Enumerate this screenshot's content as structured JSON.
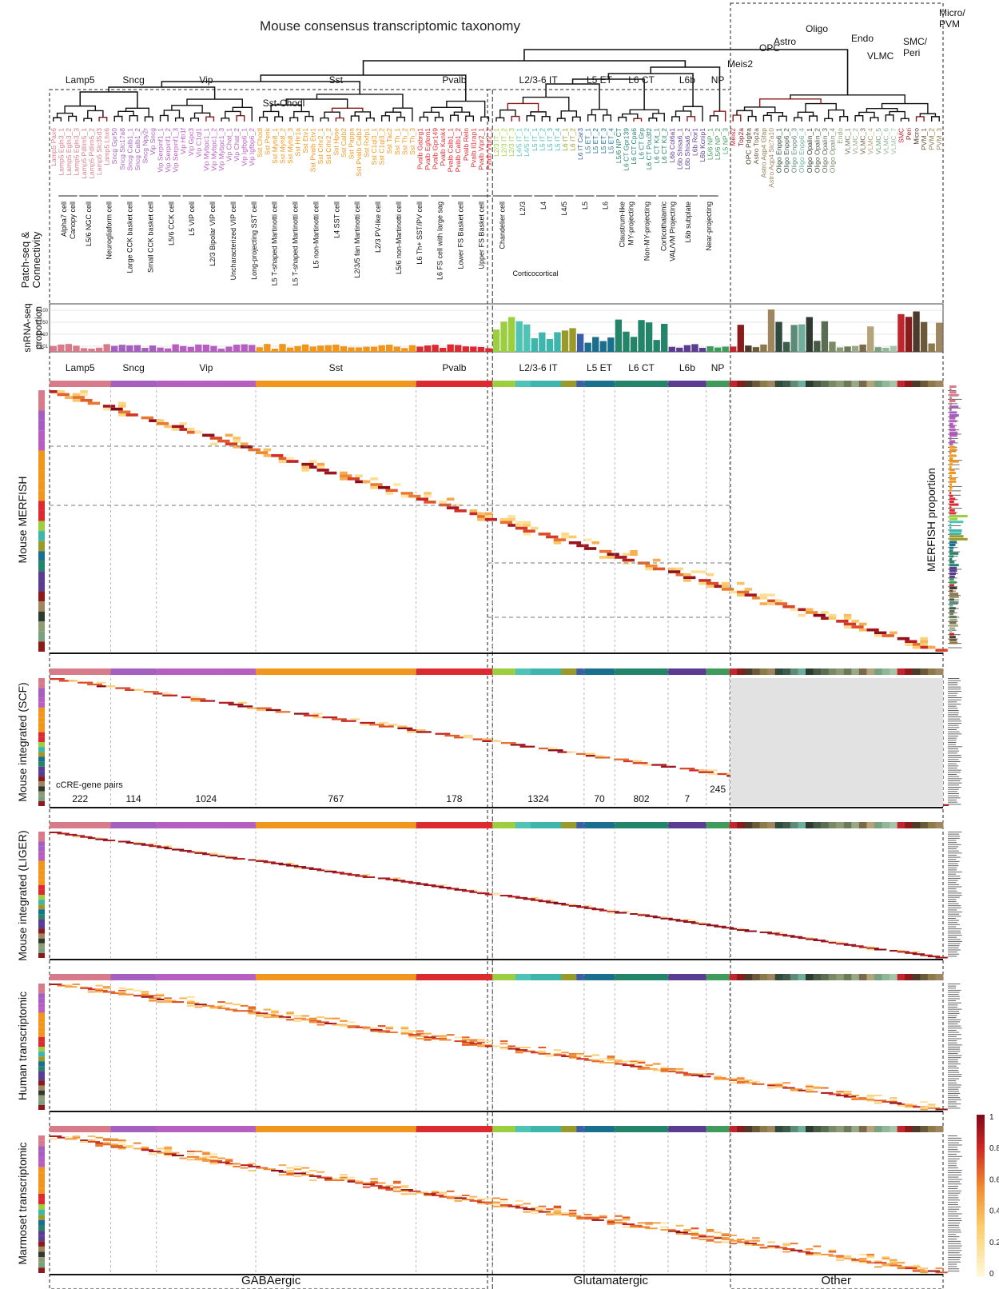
{
  "title": "Mouse consensus transcriptomic taxonomy",
  "classes": [
    {
      "name": "Lamp5",
      "color": "#d77b8a"
    },
    {
      "name": "Sncg",
      "color": "#a45fbf"
    },
    {
      "name": "Vip",
      "color": "#b65fc0"
    },
    {
      "name": "Sst",
      "color": "#f0961d"
    },
    {
      "name": "Pvalb",
      "color": "#dc2a31"
    },
    {
      "name": "L2/3-6 IT",
      "color": "#3fb6ad"
    },
    {
      "name": "L5 ET",
      "color": "#1a6f8e"
    },
    {
      "name": "L6 CT",
      "color": "#23846a"
    },
    {
      "name": "L6b",
      "color": "#5a3d91"
    },
    {
      "name": "NP",
      "color": "#3f9a5b"
    },
    {
      "name": "Other",
      "color": "#3c4a3e"
    }
  ],
  "top_labels": {
    "sst_chodl": "Sst-Chodl",
    "other_group": [
      "OPC",
      "Astro",
      "Oligo",
      "Endo",
      "VLMC",
      "SMC/\nPeri",
      "Micro/\nPVM",
      "Meis2"
    ]
  },
  "leaf_labels": [
    "Lamp5 Pax6",
    "Lamp5 Egln3_1",
    "Lamp5 Egln3_2",
    "Lamp5 Egln3_3",
    "Lamp5 Pdlim5_1",
    "Lamp5 Pdlim5_2",
    "Lamp5 Slc35d3",
    "Lamp5 Lhx6",
    "Sncg Gpr50",
    "Sncg Slc17a8",
    "Sncg Calb1_1",
    "Sncg Calb1_2",
    "Sncg Npy2r",
    "Vip Sncg",
    "Vip Serpinf1_1",
    "Vip Serpinf1_2",
    "Vip Serpinf1_3",
    "Vip Htr1f",
    "Vip Gpc3",
    "Vip C1ql1",
    "Vip Mybpc1_1",
    "Vip Mybpc1_2",
    "Vip Mybpc1_3",
    "Vip Chat_1",
    "Vip Chat_2",
    "Vip Igfbp6_1",
    "Vip Igfbp6_2",
    "Sst Chodl",
    "Sst Penk",
    "Sst Myh8_1",
    "Sst Myh8_2",
    "Sst Myh8_3",
    "Sst Htr1a",
    "Sst Etv1",
    "Sst Pvalb Etv1",
    "Sst Crhr2_1",
    "Sst Crhr2_2",
    "Sst Hpse",
    "Sst Calb2",
    "Sst Pappa",
    "Sst Pvalb Calb2",
    "Sst Rxfp1",
    "Sst C1ql3_1",
    "Sst C1ql3_2",
    "Sst Tac2",
    "Sst Th_1",
    "Sst Th_2",
    "Sst Th_3",
    "Pvalb Gabrg1",
    "Pvalb Egfem1",
    "Pvalb Gpr149",
    "Pvalb Kank4",
    "Pvalb Calb1_1",
    "Pvalb Calb1_2",
    "Pvalb Reln",
    "Pvalb Il1rap1",
    "Pvalb Vipr2_1",
    "Pvalb Vipr2_2",
    "L2/3 IT_1",
    "L2/3 IT_2",
    "L2/3 IT_3",
    "L4/5 IT_1",
    "L4/5 IT_2",
    "L5 IT_1",
    "L5 IT_2",
    "L5 IT_3",
    "L5 IT_4",
    "L6 IT_1",
    "L6 IT_2",
    "L6 IT Car3",
    "L5 ET_1",
    "L5 ET_2",
    "L5 ET_3",
    "L5 ET_4",
    "L5/6 NP CT",
    "L6 CT Gpr139",
    "L6 CT Cpa6",
    "L6 CT Grp",
    "L6 CT Pou3f2",
    "L6 CT Kit_1",
    "L6 CT Kit_2",
    "L6b Col6a1",
    "L6b Shisa6_1",
    "L6b Shisa6_2",
    "L6b Ror1",
    "L6b Kcnip1",
    "L5/6 NP_1",
    "L5/6 NP_2",
    "L5 NP_3",
    "Meis2",
    "Top2a",
    "OPC Pdgfra",
    "Astro Top2a",
    "Astro Aqp4 Gfap",
    "Astro Aqp4 Slc7a10",
    "Oligo Enpp6_1",
    "Oligo Enpp6_2",
    "Oligo Enpp6_3",
    "Oligo Enpp6_4",
    "Oligo Opalin_1",
    "Oligo Opalin_2",
    "Oligo Opalin_3",
    "Oligo Opalin_4",
    "Endo",
    "VLMC_1",
    "VLMC_2",
    "VLMC_3",
    "VLMC_4",
    "VLMC_5",
    "VLMC_6",
    "VLMC_7",
    "SMC",
    "Peri",
    "Micro",
    "PVM_1",
    "PVM_2",
    "PVM_3"
  ],
  "patch_labels": [
    "Alpha7 cell\nCanopy cell",
    "L5/6 NGC cell",
    "Neurogliaform cell",
    "Large CCK basket cell",
    "Small CCK basket cell",
    "L5/6 CCK cell",
    "L5 VIP cell",
    "L2/3 Bipolar VIP cell",
    "Uncharacterized VIP cell",
    "Long-projecting SST cell",
    "L5 T-shaped Martinotti cell",
    "L5 T-shaped Martinotti cell",
    "L5 non-Martinotti cell",
    "L4 SST cell",
    "L2/3/5 fan Martinotti cell",
    "L2/3 PV-like cell",
    "L5/6 non-Martinotti cell",
    "L6 Th+ SST/PV cell",
    "L6 FS cell with large sag",
    "Lower FS Basket cell",
    "Upper FS Basket cell",
    "Chandelier cell",
    "L2/3",
    "L4",
    "L4/5",
    "L5",
    "L6",
    "Claustrum-like\nMY-projecting",
    "Non-MY-projecting",
    "Corticothalamic\nVAL/VM Projecting",
    "L6b subplate",
    "Near-projecting"
  ],
  "corticocortical_label": "Corticocortical",
  "row_labels": {
    "patch": "Patch-seq &\nConnectivity",
    "snrna": "snRNA-seq\nproportion",
    "merfish": "Mouse MERFISH",
    "merfish_right": "MERFISH proportion",
    "scf": "Mouse integrated (SCF)",
    "liger": "Mouse integrated (LIGER)",
    "human": "Human transcriptomic",
    "marmoset": "Marmoset transcriptomic"
  },
  "snrna_ticks": [
    "0.100",
    "0.050",
    "0.010",
    "0.001"
  ],
  "cre_pairs": {
    "label": "cCRE-gene pairs",
    "values": [
      "222",
      "114",
      "1024",
      "767",
      "178",
      "1324",
      "70",
      "802",
      "7",
      "245"
    ]
  },
  "bottom_labels": [
    "GABAergic",
    "Glutamatergic",
    "Other"
  ],
  "colorbar": {
    "ticks": [
      "1",
      "0.8",
      "0.6",
      "0.4",
      "0.2",
      "0"
    ],
    "low": "#fff7d6",
    "mid": "#f5a24b",
    "high": "#8b0a1a"
  },
  "chart_data": {
    "type": "heatmap",
    "title": "Mouse consensus transcriptomic taxonomy",
    "panels": [
      "Mouse MERFISH",
      "Mouse integrated (SCF)",
      "Mouse integrated (LIGER)",
      "Human transcriptomic",
      "Marmoset transcriptomic"
    ],
    "subclasses": [
      "Lamp5",
      "Sncg",
      "Vip",
      "Sst",
      "Pvalb",
      "L2/3-6 IT",
      "L5 ET",
      "L6 CT",
      "L6b",
      "NP",
      "Other"
    ],
    "cre_gene_pairs": {
      "Lamp5": 222,
      "Sncg": 114,
      "Vip": 1024,
      "Sst": 767,
      "Pvalb": 178,
      "L2/3-6 IT": 1324,
      "L5 ET": 70,
      "L6 CT": 802,
      "L6b": 7,
      "NP": 245
    },
    "colorbar_range": [
      0,
      1
    ],
    "snrna_axis": {
      "scale": "log",
      "ticks": [
        0.001,
        0.01,
        0.05,
        0.1
      ]
    }
  }
}
